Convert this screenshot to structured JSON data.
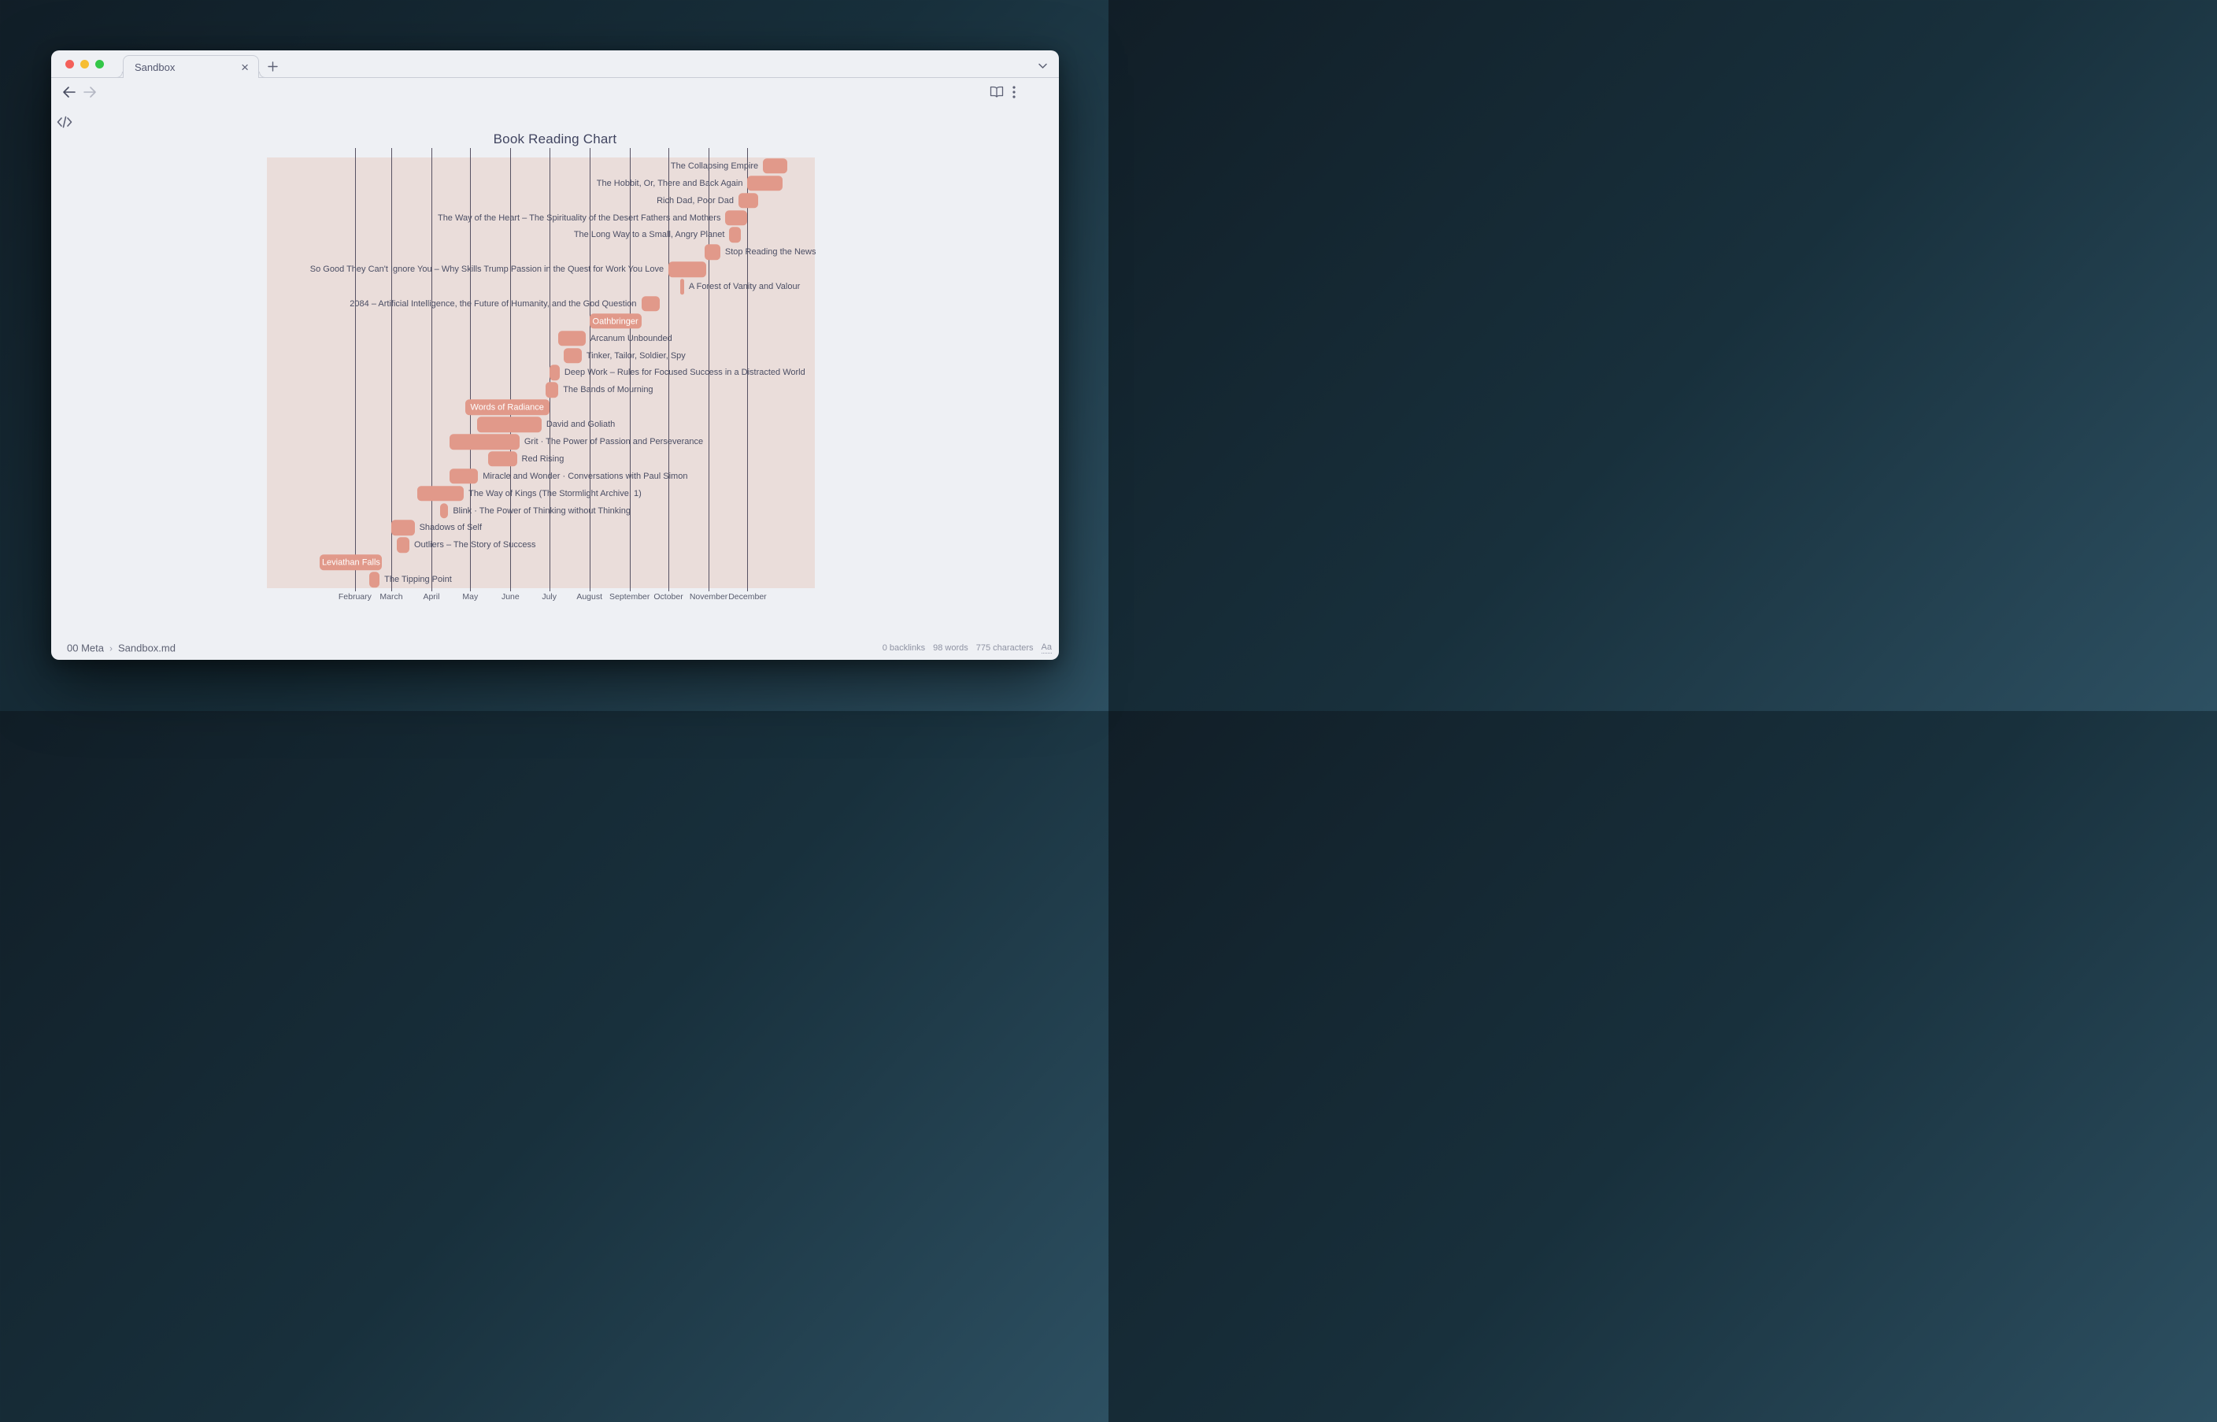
{
  "window_chrome": {
    "tab": {
      "title": "Sandbox"
    },
    "icons": {
      "tab_close": "×"
    },
    "traffic_lights": {
      "close": "#f4605a",
      "minimize": "#f6bd33",
      "zoom": "#33c748"
    }
  },
  "status_bar": {
    "breadcrumb": {
      "folder": "00 Meta",
      "separator": "›",
      "file": "Sandbox.md"
    },
    "backlinks": "0 backlinks",
    "words": "98 words",
    "characters": "775 characters",
    "properties_toggle": "Aa"
  },
  "colors": {
    "chart_background": "#eaddda",
    "bar_fill": "#e1998a",
    "grid_line": "#575263",
    "task_text": "#4b4e64",
    "bar_inner_text": "#ffffff",
    "title_text": "#414560",
    "window_background": "#eef0f4",
    "desktop_top": "#111e27",
    "desktop_bottom": "#2d5062"
  },
  "chart_data": {
    "type": "bar",
    "variant": "gantt",
    "title": "Book Reading Chart",
    "xlabel": "",
    "grid": true,
    "axis_tick_labels": [
      "February",
      "March",
      "April",
      "May",
      "June",
      "July",
      "August",
      "September",
      "October",
      "November",
      "December"
    ],
    "axis_tick_months": [
      2,
      3,
      4,
      5,
      6,
      7,
      8,
      9,
      10,
      11,
      12
    ],
    "month_first_day_of_year": [
      0,
      31,
      59,
      90,
      120,
      151,
      181,
      212,
      243,
      273,
      304,
      334
    ],
    "x_scale": {
      "pad_left_days": 37,
      "pad_right_days": 21,
      "total_days": 423
    },
    "tasks": [
      {
        "title": "The Collapsing Empire",
        "start": "12-13",
        "end": "12-31",
        "label_position": "left"
      },
      {
        "title": "The Hobbit, Or, There and Back Again",
        "start": "12-01",
        "end": "12-27",
        "label_position": "left"
      },
      {
        "title": "Rich Dad, Poor Dad",
        "start": "11-24",
        "end": "12-08",
        "label_position": "left"
      },
      {
        "title": "The Way of the Heart – The Spirituality of the Desert Fathers and Mothers",
        "start": "11-14",
        "end": "11-30",
        "label_position": "left"
      },
      {
        "title": "The Long Way to a Small, Angry Planet",
        "start": "11-17",
        "end": "11-25",
        "label_position": "left"
      },
      {
        "title": "Stop Reading the News",
        "start": "10-29",
        "end": "11-09",
        "label_position": "right"
      },
      {
        "title": "So Good They Can't Ignore You – Why Skills Trump Passion in the Quest for Work You Love",
        "start": "10-01",
        "end": "10-29",
        "label_position": "left"
      },
      {
        "title": "A Forest of Vanity and Valour",
        "start": "10-10",
        "end": "10-12",
        "label_position": "right"
      },
      {
        "title": "2084 – Artificial Intelligence, the Future of Humanity, and the God Question",
        "start": "09-10",
        "end": "09-23",
        "label_position": "left"
      },
      {
        "title": "Oathbringer",
        "start": "08-01",
        "end": "09-09",
        "label_position": "inside"
      },
      {
        "title": "Arcanum Unbounded",
        "start": "07-08",
        "end": "07-28",
        "label_position": "right"
      },
      {
        "title": "Tinker, Tailor, Soldier, Spy",
        "start": "07-12",
        "end": "07-25",
        "label_position": "right"
      },
      {
        "title": "Deep Work – Rules for Focused Success in a Distracted World",
        "start": "07-01",
        "end": "07-08",
        "label_position": "right"
      },
      {
        "title": "The Bands of Mourning",
        "start": "06-28",
        "end": "07-07",
        "label_position": "right"
      },
      {
        "title": "Words of Radiance",
        "start": "04-27",
        "end": "06-30",
        "label_position": "inside"
      },
      {
        "title": "David and Goliath",
        "start": "05-06",
        "end": "06-24",
        "label_position": "right"
      },
      {
        "title": "Grit · The Power of Passion and Perseverance",
        "start": "04-15",
        "end": "06-07",
        "label_position": "right"
      },
      {
        "title": "Red Rising",
        "start": "05-15",
        "end": "06-05",
        "label_position": "right"
      },
      {
        "title": "Miracle and Wonder · Conversations with Paul Simon",
        "start": "04-15",
        "end": "05-06",
        "label_position": "right"
      },
      {
        "title": "The Way of Kings (The Stormlight Archive, 1)",
        "start": "03-21",
        "end": "04-25",
        "label_position": "right"
      },
      {
        "title": "Blink · The Power of Thinking without Thinking",
        "start": "04-08",
        "end": "04-13",
        "label_position": "right"
      },
      {
        "title": "Shadows of Self",
        "start": "03-01",
        "end": "03-18",
        "label_position": "right"
      },
      {
        "title": "Outliers – The Story of Success",
        "start": "03-05",
        "end": "03-14",
        "label_position": "right"
      },
      {
        "title": "Leviathan Falls",
        "start": "01-05",
        "end": "02-21",
        "label_position": "inside"
      },
      {
        "title": "The Tipping Point",
        "start": "02-12",
        "end": "02-19",
        "label_position": "right"
      }
    ]
  }
}
